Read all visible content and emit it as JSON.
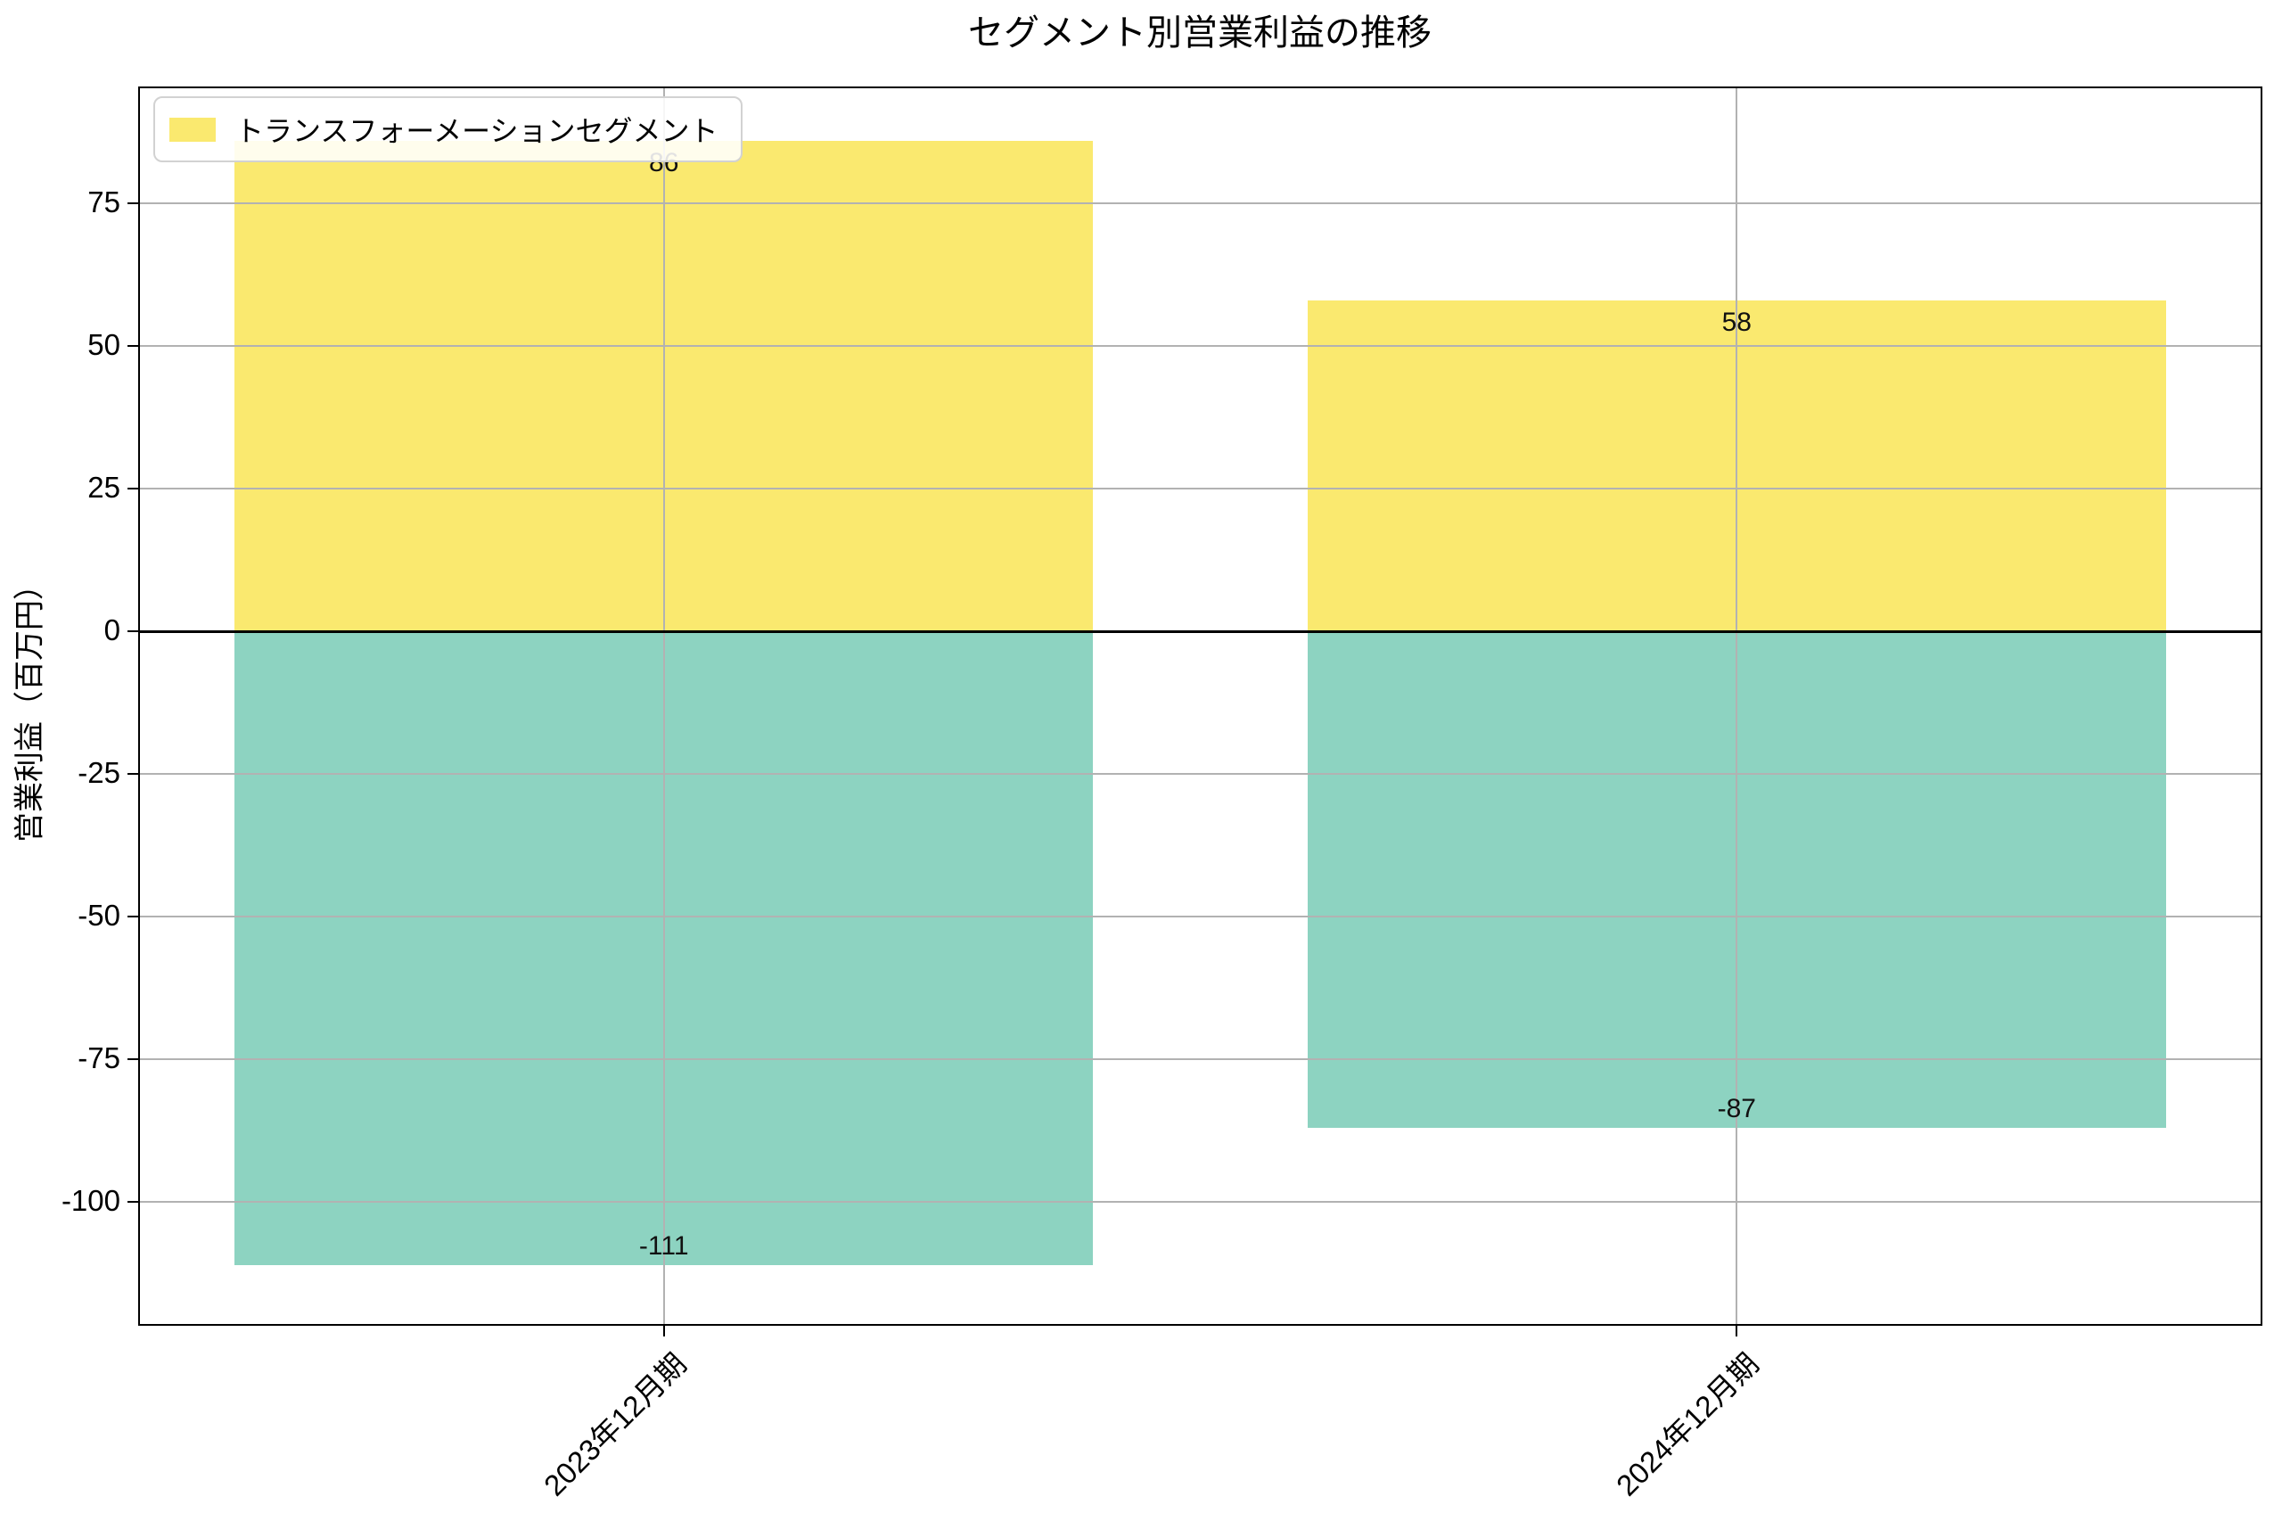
{
  "page": {
    "background": "#ffffff"
  },
  "chart_data": {
    "type": "bar",
    "title": "セグメント別営業利益の推移",
    "ylabel": "営業利益（百万円）",
    "xlabel": "",
    "categories": [
      "2023年12月期",
      "2024年12月期"
    ],
    "series": [
      {
        "name": "トランスフォーメーションセグメント",
        "color": "#FAE96F",
        "values": [
          86,
          58
        ]
      },
      {
        "name": "",
        "color": "#8DD3C1",
        "values": [
          -111,
          -87
        ]
      }
    ],
    "yticks": [
      75,
      50,
      25,
      0,
      -25,
      -50,
      -75,
      -100
    ],
    "ylim": [
      -121.7,
      95.5
    ],
    "xlim": [
      -0.49,
      1.49
    ],
    "bar_width": 0.8,
    "grid": true,
    "grid_color": "#b2b2b2",
    "axis_color": "#000000",
    "zero_line": true,
    "legend": {
      "position": "upper-left",
      "entries": [
        {
          "label": "トランスフォーメーションセグメント",
          "color": "#FAE96F"
        }
      ]
    }
  }
}
